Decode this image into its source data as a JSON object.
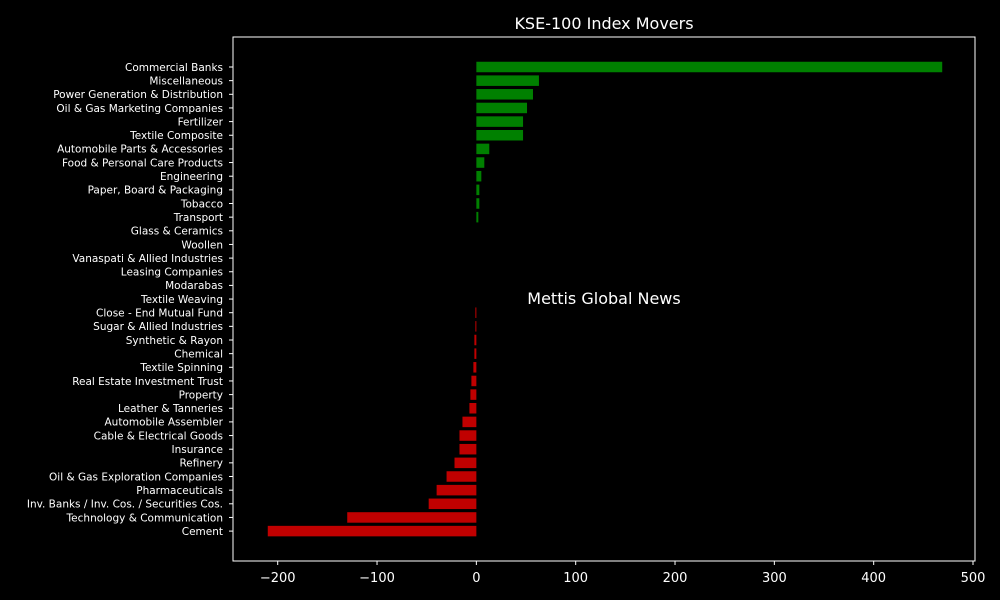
{
  "chart_data": {
    "type": "bar",
    "orientation": "horizontal",
    "title": "KSE-100 Index Movers",
    "xlabel": "",
    "ylabel": "",
    "xlim": [
      -245,
      502
    ],
    "grid": false,
    "xticks": [
      -200,
      -100,
      0,
      100,
      200,
      300,
      400,
      500
    ],
    "xtick_labels": [
      "−200",
      "−100",
      "0",
      "100",
      "200",
      "300",
      "400",
      "500"
    ],
    "annotation": "Mettis Global News",
    "colors": {
      "positive": "#008000",
      "negative": "#c00000",
      "annotation": "#c8691c",
      "background": "#000000",
      "text": "#ffffff"
    },
    "categories": [
      "Commercial Banks",
      "Miscellaneous",
      "Power Generation & Distribution",
      "Oil & Gas Marketing Companies",
      "Fertilizer",
      "Textile Composite",
      "Automobile Parts & Accessories",
      "Food & Personal Care Products",
      "Engineering",
      "Paper, Board & Packaging",
      "Tobacco",
      "Transport",
      "Glass & Ceramics",
      "Woollen",
      "Vanaspati & Allied Industries",
      "Leasing Companies",
      "Modarabas",
      "Textile Weaving",
      "Close - End Mutual Fund",
      "Sugar & Allied Industries",
      "Synthetic & Rayon",
      "Chemical",
      "Textile Spinning",
      "Real Estate Investment Trust",
      "Property",
      "Leather & Tanneries",
      "Automobile Assembler",
      "Cable & Electrical Goods",
      "Insurance",
      "Refinery",
      "Oil & Gas Exploration Companies",
      "Pharmaceuticals",
      "Inv. Banks / Inv. Cos. / Securities Cos.",
      "Technology & Communication",
      "Cement"
    ],
    "values": [
      469,
      63,
      57,
      51,
      47,
      47,
      13,
      8,
      5,
      3,
      3,
      2,
      0,
      0,
      0,
      0,
      0,
      0,
      -1,
      -1,
      -2,
      -2,
      -3,
      -5,
      -6,
      -7,
      -14,
      -17,
      -17,
      -22,
      -30,
      -40,
      -48,
      -130,
      -210
    ]
  }
}
